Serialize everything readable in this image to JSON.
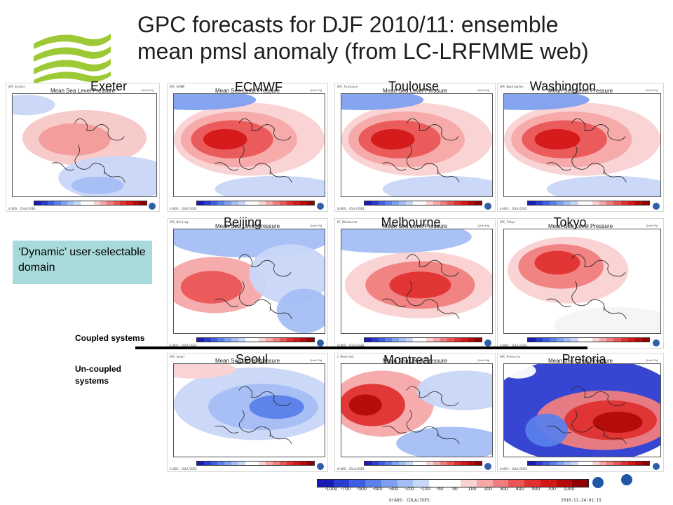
{
  "title": {
    "line1": "GPC forecasts for DJF 2010/11: ensemble",
    "line2": "mean pmsl anomaly (from LC-LRFMME web)"
  },
  "logo": {
    "icon": "wave-logo",
    "color": "#9ec936"
  },
  "panel_text": {
    "map_title": "Mean Sea Level Pressure",
    "unit": "[Unit: Pa]",
    "grads": "GrADS: COLA/IGES"
  },
  "models": [
    {
      "label": "Exeter",
      "header": "GPC_Exeter",
      "pattern": "weak-dipole",
      "group": "coupled"
    },
    {
      "label": "ECMWF",
      "header": "GPC_ECMWF",
      "pattern": "strong-high",
      "group": "coupled"
    },
    {
      "label": "Toulouse",
      "header": "GPC_Toulouse",
      "pattern": "strong-high",
      "group": "coupled"
    },
    {
      "label": "Washington",
      "header": "GPC_Washington",
      "pattern": "strong-high",
      "group": "coupled"
    },
    {
      "label": "Beijing",
      "header": "GPC_Beijing",
      "pattern": "dipole",
      "group": "coupled"
    },
    {
      "label": "Melbourne",
      "header": "PC_Melbourne",
      "pattern": "central-high",
      "group": "coupled"
    },
    {
      "label": "Tokyo",
      "header": "GPC_Tokyo",
      "pattern": "north-high",
      "group": "coupled"
    },
    {
      "label": "Seoul",
      "header": "GPC_Seoul",
      "pattern": "low",
      "group": "uncoupled"
    },
    {
      "label": "Montreal",
      "header": "C_Montreal",
      "pattern": "west-high",
      "group": "uncoupled"
    },
    {
      "label": "Pretoria",
      "header": "GPC_Pretoria",
      "pattern": "strong-dipole",
      "group": "uncoupled"
    }
  ],
  "callout": {
    "text": "‘Dynamic’ user-selectable domain",
    "color": "#a9dadb"
  },
  "groups": {
    "coupled": "Coupled systems",
    "uncoupled": "Un-coupled systems"
  },
  "legend": {
    "ticks": [
      "-1000",
      "-700",
      "-500",
      "-400",
      "-300",
      "-200",
      "-100",
      "-50",
      "50",
      "100",
      "200",
      "300",
      "400",
      "500",
      "700",
      "1000"
    ],
    "colors": [
      "#1a1ab4",
      "#2b3cd0",
      "#3f5ee0",
      "#5a80ea",
      "#7ea0f0",
      "#a4bef4",
      "#c8d6f8",
      "#ffffff",
      "#ffffff",
      "#fad2d2",
      "#f6a8a8",
      "#f07e7e",
      "#ea5656",
      "#e03030",
      "#d41818",
      "#b40a0a",
      "#900000"
    ],
    "grads": "GrADS: COLA/IGES",
    "date": "2010-11-24-01:15"
  }
}
